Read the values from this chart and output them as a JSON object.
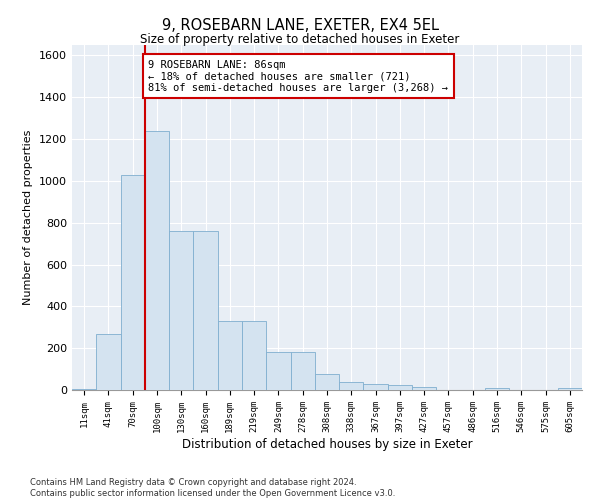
{
  "title": "9, ROSEBARN LANE, EXETER, EX4 5EL",
  "subtitle": "Size of property relative to detached houses in Exeter",
  "xlabel": "Distribution of detached houses by size in Exeter",
  "ylabel": "Number of detached properties",
  "categories": [
    "11sqm",
    "41sqm",
    "70sqm",
    "100sqm",
    "130sqm",
    "160sqm",
    "189sqm",
    "219sqm",
    "249sqm",
    "278sqm",
    "308sqm",
    "338sqm",
    "367sqm",
    "397sqm",
    "427sqm",
    "457sqm",
    "486sqm",
    "516sqm",
    "546sqm",
    "575sqm",
    "605sqm"
  ],
  "values": [
    5,
    270,
    1030,
    1240,
    760,
    760,
    330,
    330,
    180,
    180,
    75,
    40,
    30,
    25,
    15,
    0,
    0,
    10,
    0,
    0,
    10
  ],
  "bar_color": "#d4e3f0",
  "bar_edge_color": "#7faecf",
  "vline_color": "#cc0000",
  "annotation_text": "9 ROSEBARN LANE: 86sqm\n← 18% of detached houses are smaller (721)\n81% of semi-detached houses are larger (3,268) →",
  "annotation_box_color": "#ffffff",
  "annotation_box_edge_color": "#cc0000",
  "ylim": [
    0,
    1650
  ],
  "yticks": [
    0,
    200,
    400,
    600,
    800,
    1000,
    1200,
    1400,
    1600
  ],
  "grid_color": "#ffffff",
  "background_color": "#e8eef5",
  "footer_line1": "Contains HM Land Registry data © Crown copyright and database right 2024.",
  "footer_line2": "Contains public sector information licensed under the Open Government Licence v3.0."
}
